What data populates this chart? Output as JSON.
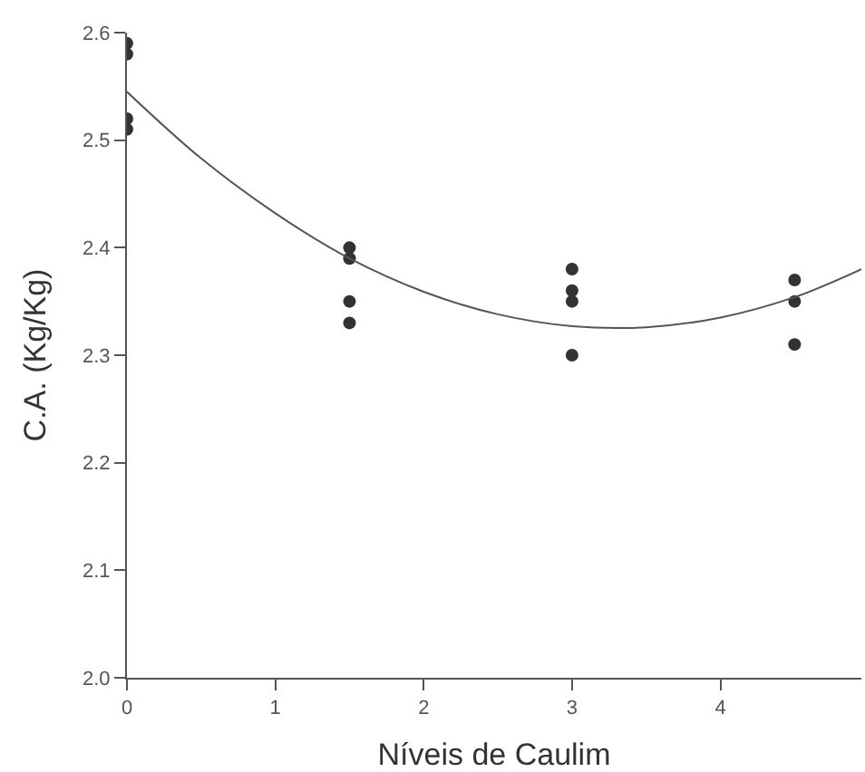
{
  "chart_data": {
    "type": "scatter",
    "xlabel": "Níveis de Caulim",
    "ylabel": "C.A. (Kg/Kg)",
    "xlim": [
      0,
      4.95
    ],
    "xticks": [
      0,
      1,
      2,
      3,
      4
    ],
    "ylim": [
      2.0,
      2.6
    ],
    "yticks": [
      {
        "value": 2,
        "label": "2.0"
      },
      2.1,
      2.2,
      2.3,
      2.4,
      2.5,
      2.6
    ],
    "grid": false,
    "legend": false,
    "marker": "circle",
    "series": [
      {
        "color": "#333333",
        "x": [
          0,
          0,
          0,
          0,
          1.5,
          1.5,
          1.5,
          1.5,
          3,
          3,
          3,
          3,
          4.5,
          4.5,
          4.5
        ],
        "values": [
          2.59,
          2.58,
          2.52,
          2.51,
          2.4,
          2.39,
          2.35,
          2.33,
          2.38,
          2.36,
          2.35,
          2.3,
          2.37,
          2.35,
          2.31
        ]
      },
      {
        "type": "line",
        "color": "#555555",
        "marker": "none",
        "x": [
          0,
          0.5,
          1,
          1.5,
          2,
          2.5,
          3,
          3.5,
          4,
          4.5,
          4.95
        ],
        "values": [
          2.545,
          2.483,
          2.432,
          2.39,
          2.359,
          2.338,
          2.327,
          2.326,
          2.335,
          2.354,
          2.38
        ]
      }
    ]
  }
}
